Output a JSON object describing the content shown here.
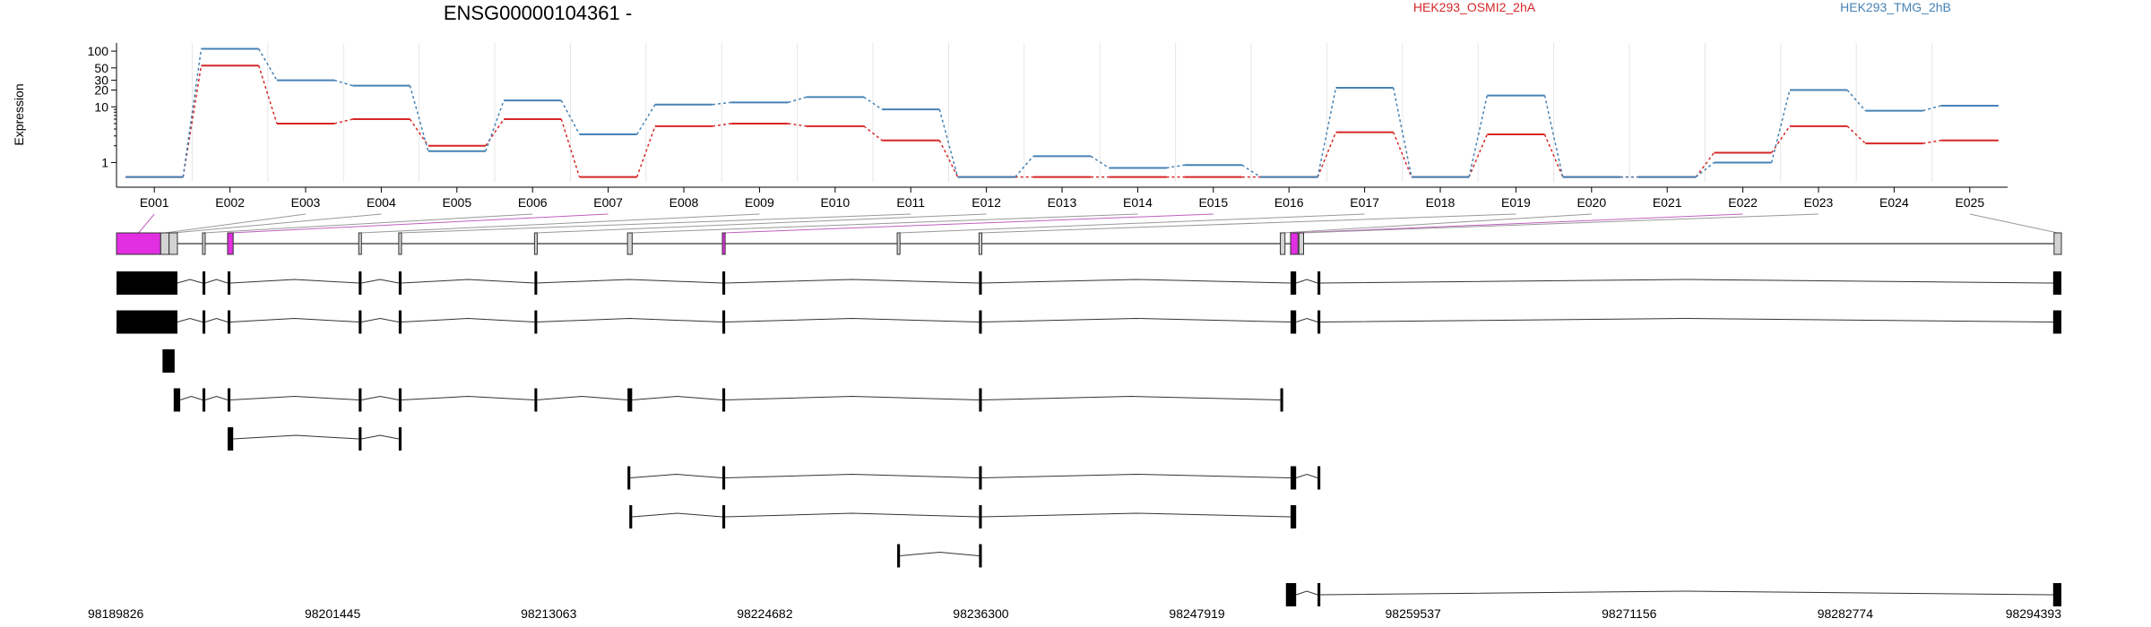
{
  "chart_data": {
    "type": "line",
    "title": "ENSG00000104361 -",
    "ylabel": "Expression",
    "xlabel": "",
    "y_scale": "log",
    "ylim": [
      0.45,
      140
    ],
    "y_ticks": [
      "1",
      "10",
      "20",
      "30",
      "50",
      "100"
    ],
    "y_tick_values": [
      1,
      10,
      20,
      30,
      50,
      100
    ],
    "grid": "vertical",
    "legend_placement": "top",
    "exons": [
      "E001",
      "E002",
      "E003",
      "E004",
      "E005",
      "E006",
      "E007",
      "E008",
      "E009",
      "E010",
      "E011",
      "E012",
      "E013",
      "E014",
      "E015",
      "E016",
      "E017",
      "E018",
      "E019",
      "E020",
      "E021",
      "E022",
      "E023",
      "E024",
      "E025"
    ],
    "series": [
      {
        "name": "HEK293_OSMI2_2hA",
        "color": "#d62728",
        "values": [
          0.55,
          55,
          5,
          6,
          2,
          6,
          0.55,
          4.5,
          5,
          4.5,
          2.5,
          0.55,
          0.55,
          0.55,
          0.55,
          0.55,
          3.5,
          0.55,
          3.2,
          0.55,
          0.55,
          1.5,
          4.5,
          2.2,
          2.5
        ]
      },
      {
        "name": "HEK293_TMG_2hB",
        "color": "#4682b4",
        "values": [
          0.55,
          110,
          30,
          24,
          1.6,
          13,
          3.2,
          11,
          12,
          15,
          9,
          0.55,
          1.3,
          0.8,
          0.9,
          0.55,
          22,
          0.55,
          16,
          0.55,
          0.55,
          1,
          20,
          8.5,
          10.5
        ]
      }
    ],
    "genomic_axis": {
      "tick_labels": [
        "98189826",
        "98201445",
        "98213063",
        "98224682",
        "98236300",
        "98247919",
        "98259537",
        "98271156",
        "98282774",
        "98294393"
      ],
      "range": [
        98189826,
        98294393
      ]
    },
    "gene_model": {
      "exons": [
        {
          "start": 98189826,
          "end": 98192200,
          "highlight": true
        },
        {
          "start": 98192200,
          "end": 98192650,
          "highlight": false
        },
        {
          "start": 98192650,
          "end": 98193100,
          "highlight": false
        },
        {
          "start": 98194450,
          "end": 98194550,
          "highlight": false
        },
        {
          "start": 98195800,
          "end": 98196100,
          "highlight": true
        },
        {
          "start": 98202850,
          "end": 98202950,
          "highlight": false
        },
        {
          "start": 98205000,
          "end": 98205150,
          "highlight": false
        },
        {
          "start": 98212300,
          "end": 98212400,
          "highlight": false
        },
        {
          "start": 98217300,
          "end": 98217550,
          "highlight": false
        },
        {
          "start": 98222400,
          "end": 98222550,
          "highlight": true
        },
        {
          "start": 98231800,
          "end": 98231950,
          "highlight": false
        },
        {
          "start": 98236200,
          "end": 98236350,
          "highlight": false
        },
        {
          "start": 98252400,
          "end": 98252650,
          "highlight": false
        },
        {
          "start": 98252950,
          "end": 98253350,
          "highlight": true
        },
        {
          "start": 98253400,
          "end": 98253650,
          "highlight": false
        },
        {
          "start": 98294000,
          "end": 98294393,
          "highlight": false
        }
      ]
    },
    "transcripts": [
      {
        "exons": [
          [
            98189826,
            98193100
          ],
          [
            98194450,
            98194600
          ],
          [
            98195800,
            98195950
          ],
          [
            98202850,
            98203000
          ],
          [
            98205000,
            98205150
          ],
          [
            98212300,
            98212400
          ],
          [
            98222400,
            98222550
          ],
          [
            98236200,
            98236350
          ],
          [
            98252950,
            98253250
          ],
          [
            98254400,
            98254550
          ],
          [
            98293950,
            98294393
          ]
        ]
      },
      {
        "exons": [
          [
            98189826,
            98193100
          ],
          [
            98194450,
            98194600
          ],
          [
            98195800,
            98195950
          ],
          [
            98202850,
            98203000
          ],
          [
            98205000,
            98205150
          ],
          [
            98212300,
            98212400
          ],
          [
            98222400,
            98222550
          ],
          [
            98236200,
            98236350
          ],
          [
            98252950,
            98253250
          ],
          [
            98254400,
            98254550
          ],
          [
            98293950,
            98294393
          ]
        ]
      },
      {
        "exons": [
          [
            98192300,
            98192950
          ]
        ]
      },
      {
        "exons": [
          [
            98192900,
            98193250
          ],
          [
            98194450,
            98194600
          ],
          [
            98195800,
            98195950
          ],
          [
            98202850,
            98203000
          ],
          [
            98205000,
            98205150
          ],
          [
            98212300,
            98212400
          ],
          [
            98217300,
            98217550
          ],
          [
            98222400,
            98222550
          ],
          [
            98236200,
            98236350
          ],
          [
            98252400,
            98252550
          ]
        ]
      },
      {
        "exons": [
          [
            98195800,
            98196100
          ],
          [
            98202850,
            98203000
          ],
          [
            98205000,
            98205150
          ]
        ]
      },
      {
        "exons": [
          [
            98217300,
            98217450
          ],
          [
            98222400,
            98222550
          ],
          [
            98236200,
            98236350
          ],
          [
            98252950,
            98253250
          ],
          [
            98254400,
            98254550
          ]
        ]
      },
      {
        "exons": [
          [
            98217400,
            98217550
          ],
          [
            98222400,
            98222550
          ],
          [
            98236200,
            98236350
          ],
          [
            98252950,
            98253250
          ]
        ]
      },
      {
        "exons": [
          [
            98231800,
            98231950
          ],
          [
            98236200,
            98236350
          ]
        ]
      },
      {
        "exons": [
          [
            98252700,
            98253250
          ],
          [
            98254400,
            98254550
          ],
          [
            98293950,
            98294393
          ]
        ]
      }
    ]
  }
}
